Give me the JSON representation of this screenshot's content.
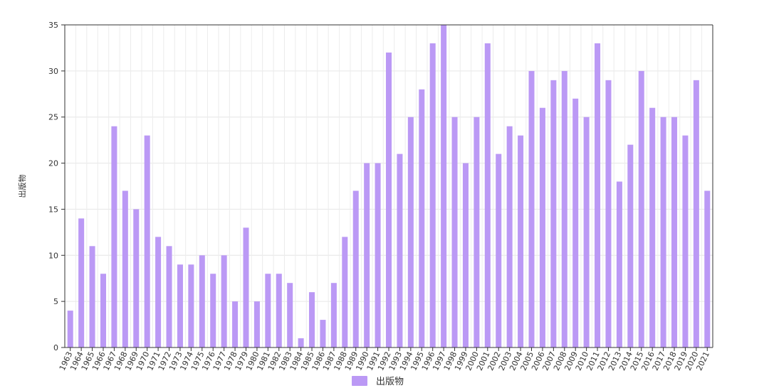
{
  "chart_data": {
    "type": "bar",
    "ylabel": "出版物",
    "xlabel": "",
    "ylim": [
      0,
      35
    ],
    "yticks": [
      0,
      5,
      10,
      15,
      20,
      25,
      30,
      35
    ],
    "grid": true,
    "legend_position": "bottom-center",
    "categories": [
      "1963",
      "1964",
      "1965",
      "1966",
      "1967",
      "1968",
      "1969",
      "1970",
      "1971",
      "1972",
      "1973",
      "1974",
      "1975",
      "1976",
      "1977",
      "1978",
      "1979",
      "1980",
      "1981",
      "1982",
      "1983",
      "1984",
      "1985",
      "1986",
      "1987",
      "1988",
      "1989",
      "1990",
      "1991",
      "1992",
      "1993",
      "1994",
      "1995",
      "1996",
      "1997",
      "1998",
      "1999",
      "2000",
      "2001",
      "2002",
      "2003",
      "2004",
      "2005",
      "2006",
      "2007",
      "2008",
      "2009",
      "2010",
      "2011",
      "2012",
      "2013",
      "2014",
      "2015",
      "2016",
      "2017",
      "2018",
      "2019",
      "2020",
      "2021"
    ],
    "series": [
      {
        "name": "出版物",
        "color": "#bb99f5",
        "values": [
          4,
          14,
          11,
          8,
          24,
          17,
          15,
          23,
          12,
          11,
          9,
          9,
          10,
          8,
          10,
          5,
          13,
          5,
          8,
          8,
          7,
          1,
          6,
          3,
          7,
          12,
          17,
          20,
          20,
          32,
          21,
          25,
          28,
          33,
          35,
          25,
          20,
          25,
          33,
          21,
          24,
          23,
          30,
          26,
          29,
          30,
          27,
          25,
          33,
          29,
          18,
          22,
          30,
          26,
          25,
          25,
          23,
          29,
          17
        ]
      }
    ]
  }
}
